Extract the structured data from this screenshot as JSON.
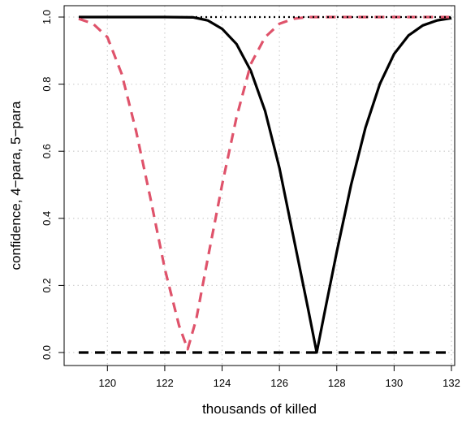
{
  "chart_data": {
    "type": "line",
    "title": "",
    "xlabel": "thousands of killed",
    "ylabel": "confidence, 4−para, 5−para",
    "xlim": [
      119,
      132
    ],
    "ylim": [
      0,
      1
    ],
    "x_ticks": [
      120,
      122,
      124,
      126,
      128,
      130,
      132
    ],
    "x_tick_labels": [
      "120",
      "122",
      "124",
      "126",
      "128",
      "130",
      "132"
    ],
    "y_ticks": [
      0,
      0.2,
      0.4,
      0.6,
      0.8,
      1
    ],
    "y_tick_labels": [
      "0.0",
      "0.2",
      "0.4",
      "0.6",
      "0.8",
      "1.0"
    ],
    "grid": true,
    "grid_style": "dotted",
    "series": [
      {
        "line_style": "solid",
        "color": "#000000",
        "x": [
          119.0,
          122.0,
          123.0,
          123.5,
          124.0,
          124.5,
          125.0,
          125.5,
          126.0,
          126.5,
          127.0,
          127.3,
          127.6,
          128.0,
          128.5,
          129.0,
          129.5,
          130.0,
          130.5,
          131.0,
          131.5,
          132.0
        ],
        "values": [
          1.0,
          1.0,
          0.999,
          0.99,
          0.965,
          0.92,
          0.84,
          0.72,
          0.55,
          0.34,
          0.13,
          0.0,
          0.13,
          0.3,
          0.5,
          0.67,
          0.8,
          0.89,
          0.945,
          0.975,
          0.99,
          0.997
        ]
      },
      {
        "line_style": "dashed",
        "color": "#DF536B",
        "x": [
          119.0,
          119.5,
          120.0,
          120.5,
          121.0,
          121.5,
          122.0,
          122.5,
          122.8,
          123.1,
          123.5,
          124.0,
          124.5,
          125.0,
          125.5,
          126.0,
          126.5,
          127.0,
          128.0,
          129.0,
          130.0,
          131.0,
          132.0
        ],
        "values": [
          0.995,
          0.98,
          0.94,
          0.83,
          0.66,
          0.46,
          0.25,
          0.08,
          0.01,
          0.1,
          0.28,
          0.5,
          0.7,
          0.86,
          0.94,
          0.98,
          0.995,
          1.0,
          1.0,
          1.0,
          1.0,
          1.0,
          1.0
        ]
      },
      {
        "line_style": "dashed",
        "color": "#000000",
        "x": [
          119.0,
          132.0
        ],
        "values": [
          0.0,
          0.0
        ]
      },
      {
        "line_style": "dotted",
        "color": "#000000",
        "x": [
          119.0,
          132.0
        ],
        "values": [
          1.0,
          1.0
        ]
      }
    ]
  }
}
